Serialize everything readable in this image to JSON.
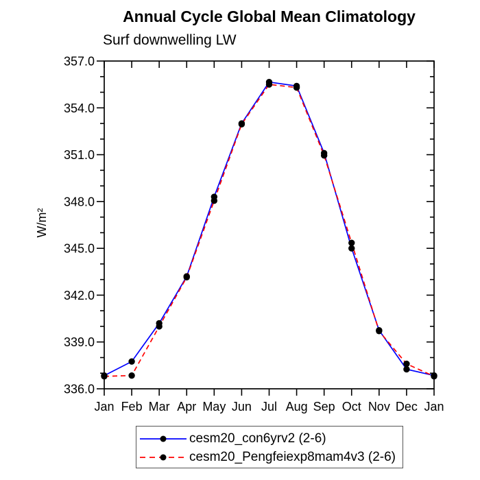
{
  "page": {
    "background": "#ffffff",
    "text_color": "#000000",
    "axis_color": "#000000"
  },
  "chart_data": {
    "type": "line",
    "title": "Annual Cycle Global Mean Climatology",
    "subtitle": "Surf downwelling LW",
    "ylabel": "W/m²",
    "x_categories": [
      "Jan",
      "Feb",
      "Mar",
      "Apr",
      "May",
      "Jun",
      "Jul",
      "Aug",
      "Sep",
      "Oct",
      "Nov",
      "Dec",
      "Jan"
    ],
    "y_axis": {
      "min": 336.0,
      "max": 357.0,
      "major_step": 3.0,
      "minor_step": 1.0,
      "tick_labels": [
        "336.0",
        "339.0",
        "342.0",
        "345.0",
        "348.0",
        "351.0",
        "354.0",
        "357.0"
      ]
    },
    "grid": false,
    "legend_position": "bottom",
    "series": [
      {
        "name": "cesm20_con6yrv2 (2-6)",
        "color": "#0000ff",
        "line_style": "solid",
        "marker": "filled-circle",
        "marker_color": "#000000",
        "values": [
          336.85,
          337.75,
          340.2,
          343.2,
          348.3,
          353.0,
          355.65,
          355.4,
          351.1,
          345.0,
          339.75,
          337.25,
          336.85
        ]
      },
      {
        "name": "cesm20_Pengfeiexp8mam4v3 (2-6)",
        "color": "#ff0000",
        "line_style": "dashed",
        "marker": "filled-circle",
        "marker_color": "#000000",
        "values": [
          336.8,
          336.85,
          340.0,
          343.15,
          348.05,
          352.95,
          355.5,
          355.3,
          350.95,
          345.35,
          339.7,
          337.6,
          336.8
        ]
      }
    ]
  }
}
